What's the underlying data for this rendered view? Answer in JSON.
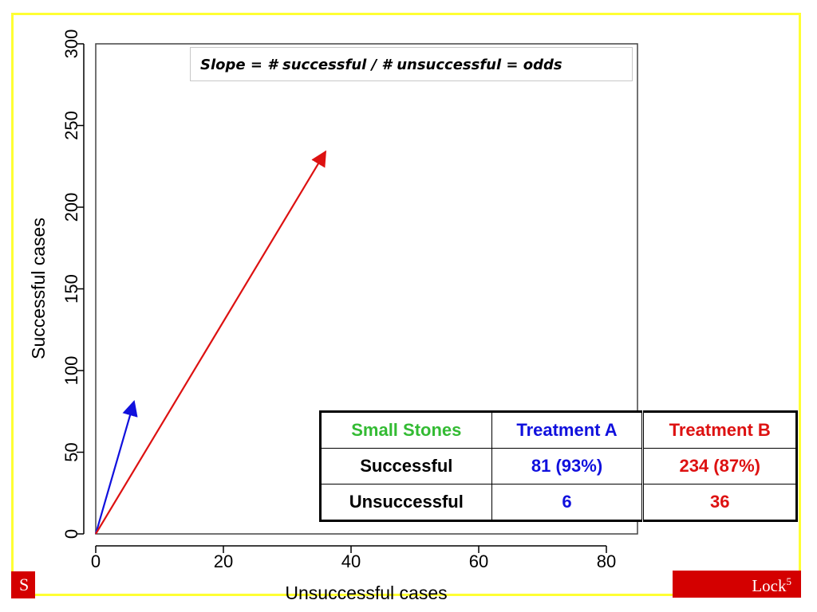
{
  "footer": {
    "left_text": "S",
    "right_text": "Lock",
    "right_superscript": "5"
  },
  "colors": {
    "frame": "#ffff33",
    "footer": "#d40000",
    "treatment_a": "#1010dd",
    "treatment_b": "#dd1111",
    "header_green": "#33bb33"
  },
  "slope_note": "Slope = # successful / # unsuccessful = odds",
  "chart_data": {
    "type": "line",
    "xlabel": "Unsuccessful cases",
    "ylabel": "Successful cases",
    "xlim": [
      0,
      85
    ],
    "ylim": [
      0,
      300
    ],
    "xticks": [
      0,
      20,
      40,
      60,
      80
    ],
    "yticks": [
      0,
      50,
      100,
      150,
      200,
      250,
      300
    ],
    "grid": false,
    "series": [
      {
        "color": "#1010dd",
        "marker": "arrow",
        "x": [
          0,
          6
        ],
        "y": [
          0,
          81
        ]
      },
      {
        "color": "#dd1111",
        "marker": "arrow",
        "x": [
          0,
          36
        ],
        "y": [
          0,
          234
        ]
      }
    ]
  },
  "table": {
    "headers": [
      "Small Stones",
      "Treatment A",
      "Treatment B"
    ],
    "rows": [
      [
        "Successful",
        "81 (93%)",
        "234 (87%)"
      ],
      [
        "Unsuccessful",
        "6",
        "36"
      ]
    ]
  }
}
